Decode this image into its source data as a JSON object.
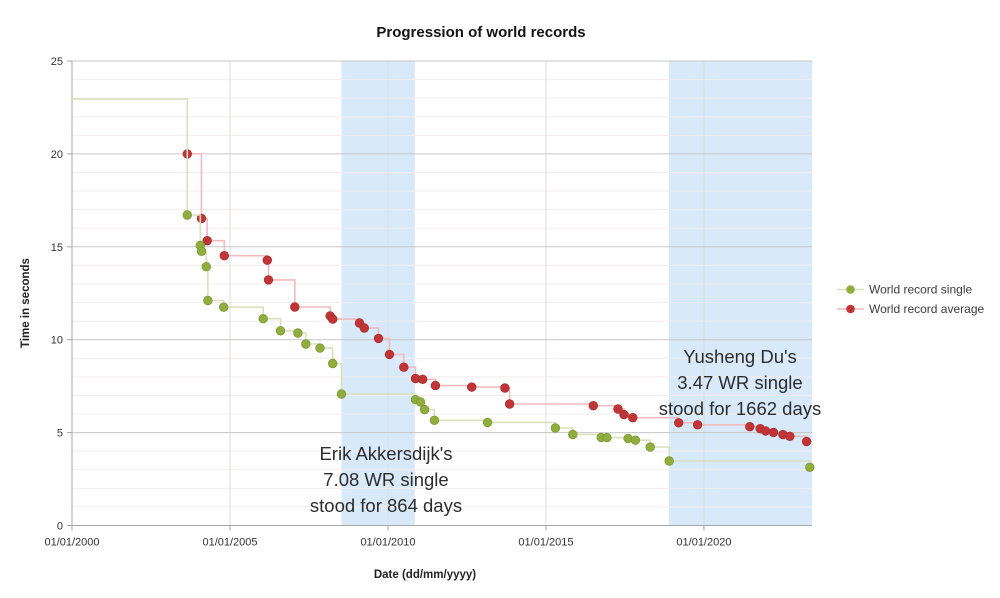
{
  "title": "Progression of world records",
  "axes": {
    "x_label": "Date (dd/mm/yyyy)",
    "y_label": "Time in seconds",
    "x_ticks": [
      "01/01/2000",
      "01/01/2005",
      "01/01/2010",
      "01/01/2015",
      "01/01/2020"
    ],
    "y_ticks": [
      "0",
      "5",
      "10",
      "15",
      "20",
      "25"
    ]
  },
  "legend": {
    "items": [
      {
        "label": "World record single",
        "dot_color": "#8fae3e",
        "line_color": "#d9e0bd"
      },
      {
        "label": "World record average",
        "dot_color": "#c23536",
        "line_color": "#f0bcbd"
      }
    ]
  },
  "annotations": [
    {
      "lines": [
        "Erik Akkersdijk's",
        "7.08 WR single",
        "stood for 864 days"
      ]
    },
    {
      "lines": [
        "Yusheng Du's",
        "3.47 WR single",
        "stood for 1662 days"
      ]
    }
  ],
  "colors": {
    "band": "#d8e9fa",
    "grid_minor": "#f2edec",
    "grid_major": "#c9c7c6",
    "grid_vertical": "#dedcdb",
    "axis": "#a8a6a5"
  },
  "chart_data": {
    "type": "line",
    "step": "after",
    "title": "Progression of world records",
    "xlabel": "Date (dd/mm/yyyy)",
    "ylabel": "Time in seconds",
    "x_unit": "decimal_year",
    "xlim": [
      2000,
      2023.42
    ],
    "ylim": [
      0,
      25
    ],
    "x_tick_years": [
      2000,
      2005,
      2010,
      2015,
      2020
    ],
    "y_tick_values": [
      0,
      5,
      10,
      15,
      20,
      25
    ],
    "grid": true,
    "legend_position": "right",
    "highlight_bands": [
      {
        "from_year": 2008.53,
        "to_year": 2010.85,
        "note": "Erik Akkersdijk's 7.08 WR single stood for 864 days"
      },
      {
        "from_year": 2018.89,
        "to_year": 2023.42,
        "note": "Yusheng Du's 3.47 WR single stood for 1662 days"
      }
    ],
    "series": [
      {
        "name": "World record average",
        "key": "average",
        "color": "#c23536",
        "stroke": "#a92f31",
        "line_color": "#f0bcbd",
        "points": [
          [
            2003.65,
            20.0
          ],
          [
            2004.1,
            16.53
          ],
          [
            2004.28,
            15.33
          ],
          [
            2004.82,
            14.52
          ],
          [
            2006.18,
            14.28
          ],
          [
            2006.22,
            13.22
          ],
          [
            2007.05,
            11.76
          ],
          [
            2008.17,
            11.28
          ],
          [
            2008.25,
            11.11
          ],
          [
            2009.1,
            10.9
          ],
          [
            2009.25,
            10.63
          ],
          [
            2009.7,
            10.07
          ],
          [
            2010.05,
            9.21
          ],
          [
            2010.5,
            8.52
          ],
          [
            2010.87,
            7.91
          ],
          [
            2011.1,
            7.87
          ],
          [
            2011.5,
            7.53
          ],
          [
            2012.65,
            7.45
          ],
          [
            2013.7,
            7.4
          ],
          [
            2013.85,
            6.54
          ],
          [
            2016.5,
            6.45
          ],
          [
            2017.28,
            6.27
          ],
          [
            2017.47,
            5.97
          ],
          [
            2017.75,
            5.8
          ],
          [
            2019.2,
            5.53
          ],
          [
            2019.8,
            5.42
          ],
          [
            2021.45,
            5.32
          ],
          [
            2021.78,
            5.21
          ],
          [
            2021.95,
            5.09
          ],
          [
            2022.2,
            5.01
          ],
          [
            2022.5,
            4.89
          ],
          [
            2022.72,
            4.8
          ],
          [
            2023.25,
            4.52
          ]
        ]
      },
      {
        "name": "World record single",
        "key": "single",
        "color": "#8fae3e",
        "stroke": "#7d9a34",
        "line_color": "#d9e0bd",
        "start_year": 2000.0,
        "start_value": 22.95,
        "points": [
          [
            2003.65,
            16.71
          ],
          [
            2004.06,
            15.07
          ],
          [
            2004.1,
            14.76
          ],
          [
            2004.25,
            13.93
          ],
          [
            2004.3,
            12.11
          ],
          [
            2004.8,
            11.75
          ],
          [
            2006.05,
            11.13
          ],
          [
            2006.6,
            10.48
          ],
          [
            2007.15,
            10.36
          ],
          [
            2007.4,
            9.77
          ],
          [
            2007.85,
            9.55
          ],
          [
            2008.25,
            8.72
          ],
          [
            2008.53,
            7.08
          ],
          [
            2010.87,
            6.77
          ],
          [
            2011.03,
            6.65
          ],
          [
            2011.16,
            6.24
          ],
          [
            2011.47,
            5.66
          ],
          [
            2013.15,
            5.55
          ],
          [
            2015.3,
            5.25
          ],
          [
            2015.85,
            4.9
          ],
          [
            2016.75,
            4.74
          ],
          [
            2016.93,
            4.73
          ],
          [
            2017.6,
            4.69
          ],
          [
            2017.83,
            4.59
          ],
          [
            2018.3,
            4.22
          ],
          [
            2018.9,
            3.47
          ],
          [
            2023.35,
            3.13
          ]
        ]
      }
    ]
  }
}
